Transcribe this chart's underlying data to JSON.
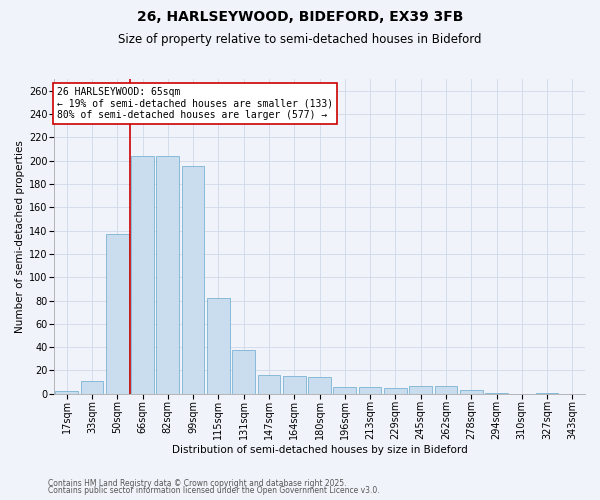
{
  "title1": "26, HARLSEYWOOD, BIDEFORD, EX39 3FB",
  "title2": "Size of property relative to semi-detached houses in Bideford",
  "xlabel": "Distribution of semi-detached houses by size in Bideford",
  "ylabel": "Number of semi-detached properties",
  "categories": [
    "17sqm",
    "33sqm",
    "50sqm",
    "66sqm",
    "82sqm",
    "99sqm",
    "115sqm",
    "131sqm",
    "147sqm",
    "164sqm",
    "180sqm",
    "196sqm",
    "213sqm",
    "229sqm",
    "245sqm",
    "262sqm",
    "278sqm",
    "294sqm",
    "310sqm",
    "327sqm",
    "343sqm"
  ],
  "values": [
    2,
    11,
    137,
    204,
    204,
    195,
    82,
    38,
    16,
    15,
    14,
    6,
    6,
    5,
    7,
    7,
    3,
    1,
    0,
    1,
    0
  ],
  "bar_color": "#c9ddef",
  "bar_edge_color": "#7ab3d4",
  "vline_color": "#cc0000",
  "annotation_text": "26 HARLSEYWOOD: 65sqm\n← 19% of semi-detached houses are smaller (133)\n80% of semi-detached houses are larger (577) →",
  "annotation_box_color": "#ffffff",
  "annotation_box_edge_color": "#cc0000",
  "ylim": [
    0,
    270
  ],
  "yticks": [
    0,
    20,
    40,
    60,
    80,
    100,
    120,
    140,
    160,
    180,
    200,
    220,
    240,
    260
  ],
  "footer1": "Contains HM Land Registry data © Crown copyright and database right 2025.",
  "footer2": "Contains public sector information licensed under the Open Government Licence v3.0.",
  "background_color": "#f0f4fa",
  "grid_color": "#d0d8e8",
  "title_fontsize": 10,
  "subtitle_fontsize": 8.5,
  "axis_label_fontsize": 7.5,
  "tick_fontsize": 7,
  "annotation_fontsize": 7,
  "footer_fontsize": 5.5
}
